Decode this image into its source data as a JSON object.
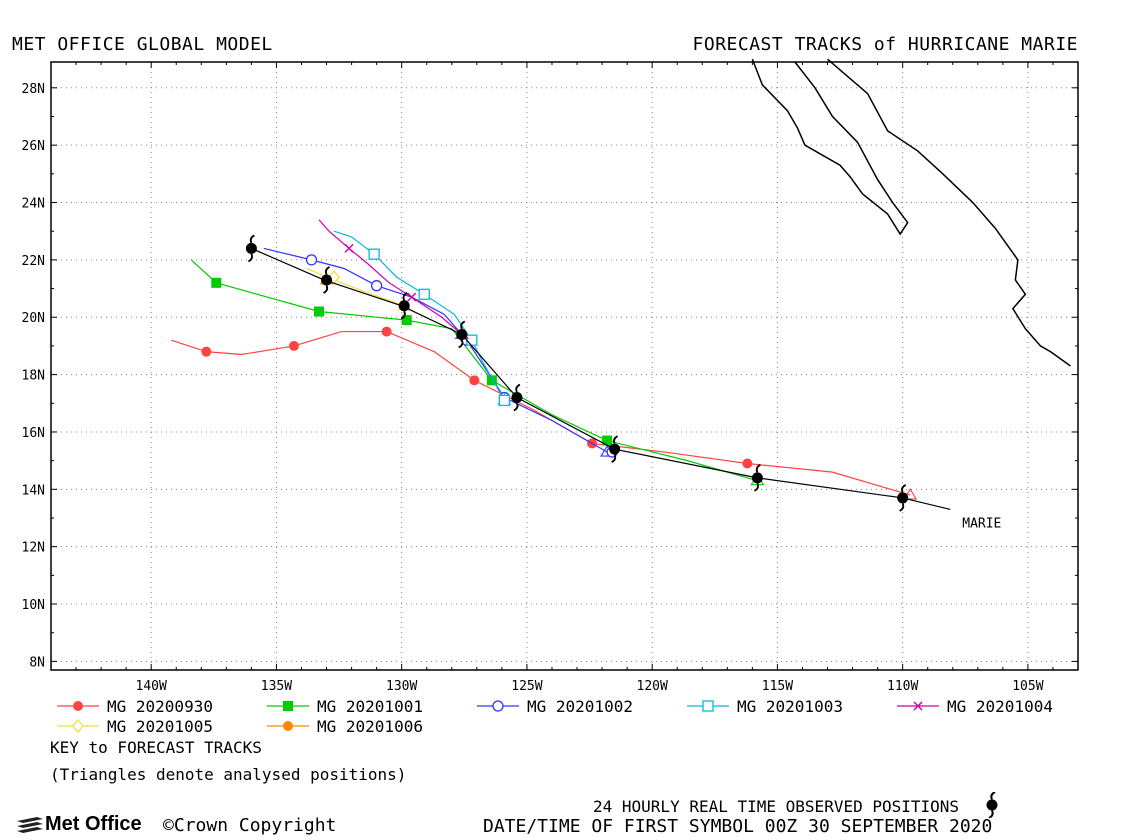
{
  "header": {
    "left": "MET OFFICE GLOBAL MODEL",
    "right": "FORECAST TRACKS of HURRICANE MARIE"
  },
  "map": {
    "lon_range": [
      -144,
      -103
    ],
    "lat_range": [
      7.7,
      28.9
    ],
    "lon_ticks": [
      "140W",
      "135W",
      "130W",
      "125W",
      "120W",
      "115W",
      "110W",
      "105W"
    ],
    "lat_ticks": [
      "28N",
      "26N",
      "24N",
      "22N",
      "20N",
      "18N",
      "16N",
      "14N",
      "12N",
      "10N",
      "8N"
    ],
    "storm_label": "MARIE"
  },
  "chart_data": {
    "type": "map",
    "observed_track": {
      "line": [
        [
          -108.1,
          13.3
        ],
        [
          -110.0,
          13.7
        ],
        [
          -115.8,
          14.4
        ],
        [
          -121.5,
          15.4
        ],
        [
          -125.4,
          17.2
        ],
        [
          -127.6,
          19.4
        ],
        [
          -130.0,
          20.4
        ],
        [
          -133.1,
          21.3
        ],
        [
          -136.0,
          22.4
        ]
      ],
      "symbols": [
        [
          -110.0,
          13.7
        ],
        [
          -115.8,
          14.4
        ],
        [
          -121.5,
          15.4
        ],
        [
          -125.4,
          17.2
        ],
        [
          -127.6,
          19.4
        ],
        [
          -129.9,
          20.4
        ],
        [
          -133.0,
          21.3
        ],
        [
          -136.0,
          22.4
        ]
      ]
    },
    "forecasts": [
      {
        "name": "MG 20200930",
        "color": "#ff4444",
        "marker": "circle-filled",
        "line": [
          [
            -109.7,
            13.8
          ],
          [
            -112.8,
            14.6
          ],
          [
            -116.2,
            14.9
          ],
          [
            -119.5,
            15.3
          ],
          [
            -122.4,
            15.6
          ],
          [
            -124.8,
            16.8
          ],
          [
            -127.1,
            17.8
          ],
          [
            -128.7,
            18.8
          ],
          [
            -130.6,
            19.5
          ],
          [
            -132.4,
            19.5
          ],
          [
            -134.3,
            19.0
          ],
          [
            -136.4,
            18.7
          ],
          [
            -137.8,
            18.8
          ],
          [
            -139.2,
            19.2
          ]
        ],
        "symbols": [
          [
            -116.2,
            14.9
          ],
          [
            -122.4,
            15.6
          ],
          [
            -127.1,
            17.8
          ],
          [
            -130.6,
            19.5
          ],
          [
            -134.3,
            19.0
          ],
          [
            -137.8,
            18.8
          ]
        ]
      },
      {
        "name": "MG 20201001",
        "color": "#00cc00",
        "marker": "square-filled",
        "line": [
          [
            -115.8,
            14.3
          ],
          [
            -118.6,
            15.0
          ],
          [
            -121.8,
            15.7
          ],
          [
            -124.0,
            16.6
          ],
          [
            -126.4,
            17.8
          ],
          [
            -128.0,
            19.6
          ],
          [
            -129.8,
            19.9
          ],
          [
            -133.3,
            20.2
          ],
          [
            -137.4,
            21.2
          ],
          [
            -138.4,
            22.0
          ]
        ],
        "symbols": [
          [
            -121.8,
            15.7
          ],
          [
            -126.4,
            17.8
          ],
          [
            -129.8,
            19.9
          ],
          [
            -133.3,
            20.2
          ],
          [
            -137.4,
            21.2
          ]
        ]
      },
      {
        "name": "MG 20201002",
        "color": "#3333ff",
        "marker": "circle-open",
        "line": [
          [
            -121.8,
            15.3
          ],
          [
            -124.0,
            16.4
          ],
          [
            -125.9,
            17.2
          ],
          [
            -127.4,
            19.2
          ],
          [
            -128.3,
            20.1
          ],
          [
            -129.6,
            20.7
          ],
          [
            -131.0,
            21.1
          ],
          [
            -132.3,
            21.7
          ],
          [
            -133.6,
            22.0
          ],
          [
            -135.5,
            22.4
          ]
        ],
        "symbols": [
          [
            -121.6,
            15.3
          ],
          [
            -125.9,
            17.2
          ],
          [
            -127.4,
            19.2
          ],
          [
            -131.0,
            21.1
          ],
          [
            -133.6,
            22.0
          ]
        ]
      },
      {
        "name": "MG 20201003",
        "color": "#00bbdd",
        "marker": "square-open",
        "line": [
          [
            -125.9,
            17.1
          ],
          [
            -126.8,
            18.5
          ],
          [
            -127.2,
            19.2
          ],
          [
            -127.9,
            20.1
          ],
          [
            -129.1,
            20.8
          ],
          [
            -130.2,
            21.4
          ],
          [
            -131.1,
            22.2
          ],
          [
            -132.0,
            22.8
          ],
          [
            -132.7,
            23.0
          ]
        ],
        "symbols": [
          [
            -125.9,
            17.1
          ],
          [
            -127.2,
            19.2
          ],
          [
            -129.1,
            20.8
          ],
          [
            -131.1,
            22.2
          ]
        ]
      },
      {
        "name": "MG 20201004",
        "color": "#cc00aa",
        "marker": "x",
        "line": [
          [
            -127.6,
            19.4
          ],
          [
            -128.4,
            20.0
          ],
          [
            -129.6,
            20.7
          ],
          [
            -130.5,
            21.2
          ],
          [
            -131.4,
            21.9
          ],
          [
            -132.1,
            22.4
          ],
          [
            -132.9,
            23.0
          ],
          [
            -133.3,
            23.4
          ]
        ],
        "symbols": [
          [
            -127.6,
            19.4
          ],
          [
            -129.6,
            20.7
          ],
          [
            -132.1,
            22.4
          ]
        ]
      },
      {
        "name": "MG 20201005",
        "color": "#eedd44",
        "marker": "diamond-open",
        "line": [
          [
            -129.9,
            20.4
          ],
          [
            -131.5,
            20.9
          ],
          [
            -132.7,
            21.3
          ],
          [
            -133.8,
            21.7
          ]
        ],
        "symbols": [
          [
            -129.9,
            20.4
          ],
          [
            -132.7,
            21.4
          ]
        ]
      },
      {
        "name": "MG 20201006",
        "color": "#ff8800",
        "marker": "circle-filled",
        "line": [
          [
            -133.0,
            21.3
          ]
        ],
        "symbols": [
          [
            -133.0,
            21.3
          ]
        ]
      }
    ],
    "coastline": [
      [
        [
          -116.0,
          29.0
        ],
        [
          -115.6,
          28.1
        ],
        [
          -114.6,
          27.2
        ],
        [
          -114.2,
          26.6
        ],
        [
          -113.9,
          26.0
        ],
        [
          -112.5,
          25.3
        ],
        [
          -112.1,
          24.9
        ],
        [
          -111.6,
          24.3
        ],
        [
          -110.6,
          23.6
        ],
        [
          -110.1,
          22.9
        ],
        [
          -109.8,
          23.3
        ],
        [
          -110.4,
          24.0
        ],
        [
          -111.0,
          24.8
        ],
        [
          -111.8,
          26.1
        ],
        [
          -112.8,
          27.0
        ],
        [
          -113.5,
          28.0
        ],
        [
          -114.3,
          28.9
        ]
      ],
      [
        [
          -113.0,
          29.0
        ],
        [
          -111.4,
          27.8
        ],
        [
          -110.6,
          26.5
        ],
        [
          -109.4,
          25.8
        ],
        [
          -108.4,
          25.0
        ],
        [
          -107.2,
          24.0
        ],
        [
          -106.3,
          23.1
        ],
        [
          -105.4,
          22.0
        ],
        [
          -105.5,
          21.3
        ],
        [
          -105.1,
          20.8
        ],
        [
          -105.6,
          20.3
        ],
        [
          -105.1,
          19.6
        ],
        [
          -104.5,
          19.0
        ],
        [
          -104.1,
          18.8
        ],
        [
          -103.3,
          18.3
        ]
      ]
    ]
  },
  "legend": [
    {
      "label": "MG 20200930",
      "color": "#ff4444",
      "marker": "circle-filled"
    },
    {
      "label": "MG 20201001",
      "color": "#00cc00",
      "marker": "square-filled"
    },
    {
      "label": "MG 20201002",
      "color": "#3333ff",
      "marker": "circle-open"
    },
    {
      "label": "MG 20201003",
      "color": "#00bbdd",
      "marker": "square-open"
    },
    {
      "label": "MG 20201004",
      "color": "#cc00aa",
      "marker": "x"
    },
    {
      "label": "MG 20201005",
      "color": "#eedd44",
      "marker": "diamond-open"
    },
    {
      "label": "MG 20201006",
      "color": "#ff8800",
      "marker": "circle-filled"
    }
  ],
  "footer": {
    "key_title": "KEY to FORECAST TRACKS",
    "key_note": "(Triangles denote analysed positions)",
    "observed_text": "24 HOURLY REAL TIME OBSERVED POSITIONS",
    "datetime_text": "DATE/TIME OF FIRST SYMBOL 00Z 30 SEPTEMBER 2020",
    "logo_text": "Met Office",
    "copyright_text": "Crown Copyright"
  }
}
